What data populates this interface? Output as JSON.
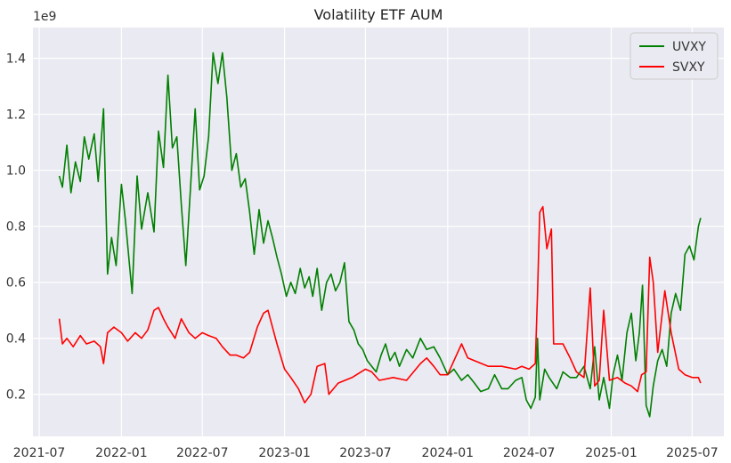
{
  "chart_data": {
    "type": "line",
    "title": "Volatility ETF AUM",
    "offset_label": "1e9",
    "xlabel": "",
    "ylabel": "",
    "xlim": [
      "2021-06-17",
      "2025-09-10"
    ],
    "ylim": [
      0.05,
      1.51
    ],
    "x_ticks": [
      "2021-07",
      "2022-01",
      "2022-07",
      "2023-01",
      "2023-07",
      "2024-01",
      "2024-07",
      "2025-01",
      "2025-07"
    ],
    "y_ticks": [
      0.2,
      0.4,
      0.6,
      0.8,
      1.0,
      1.2,
      1.4
    ],
    "y_tick_labels": [
      "0.2",
      "0.4",
      "0.6",
      "0.8",
      "1.0",
      "1.2",
      "1.4"
    ],
    "grid": true,
    "legend_position": "top-right",
    "series": [
      {
        "name": "UVXY",
        "color": "#008000",
        "points": [
          [
            "2021-08-15",
            0.98
          ],
          [
            "2021-08-22",
            0.94
          ],
          [
            "2021-09-01",
            1.09
          ],
          [
            "2021-09-10",
            0.92
          ],
          [
            "2021-09-20",
            1.03
          ],
          [
            "2021-10-01",
            0.96
          ],
          [
            "2021-10-10",
            1.12
          ],
          [
            "2021-10-20",
            1.04
          ],
          [
            "2021-11-01",
            1.13
          ],
          [
            "2021-11-10",
            0.96
          ],
          [
            "2021-11-22",
            1.22
          ],
          [
            "2021-12-01",
            0.63
          ],
          [
            "2021-12-10",
            0.76
          ],
          [
            "2021-12-20",
            0.66
          ],
          [
            "2022-01-01",
            0.95
          ],
          [
            "2022-01-10",
            0.82
          ],
          [
            "2022-01-25",
            0.56
          ],
          [
            "2022-02-05",
            0.98
          ],
          [
            "2022-02-15",
            0.79
          ],
          [
            "2022-03-01",
            0.92
          ],
          [
            "2022-03-15",
            0.78
          ],
          [
            "2022-03-25",
            1.14
          ],
          [
            "2022-04-05",
            1.01
          ],
          [
            "2022-04-15",
            1.34
          ],
          [
            "2022-04-25",
            1.08
          ],
          [
            "2022-05-05",
            1.12
          ],
          [
            "2022-05-15",
            0.88
          ],
          [
            "2022-05-25",
            0.66
          ],
          [
            "2022-06-05",
            0.95
          ],
          [
            "2022-06-15",
            1.22
          ],
          [
            "2022-06-25",
            0.93
          ],
          [
            "2022-07-05",
            0.98
          ],
          [
            "2022-07-15",
            1.12
          ],
          [
            "2022-07-25",
            1.42
          ],
          [
            "2022-08-05",
            1.31
          ],
          [
            "2022-08-15",
            1.42
          ],
          [
            "2022-08-25",
            1.26
          ],
          [
            "2022-09-05",
            1.0
          ],
          [
            "2022-09-15",
            1.06
          ],
          [
            "2022-09-25",
            0.94
          ],
          [
            "2022-10-05",
            0.97
          ],
          [
            "2022-10-15",
            0.85
          ],
          [
            "2022-10-25",
            0.7
          ],
          [
            "2022-11-05",
            0.86
          ],
          [
            "2022-11-15",
            0.74
          ],
          [
            "2022-11-25",
            0.82
          ],
          [
            "2022-12-05",
            0.76
          ],
          [
            "2022-12-15",
            0.69
          ],
          [
            "2022-12-25",
            0.63
          ],
          [
            "2023-01-05",
            0.55
          ],
          [
            "2023-01-15",
            0.6
          ],
          [
            "2023-01-25",
            0.56
          ],
          [
            "2023-02-05",
            0.65
          ],
          [
            "2023-02-15",
            0.58
          ],
          [
            "2023-02-25",
            0.62
          ],
          [
            "2023-03-05",
            0.55
          ],
          [
            "2023-03-15",
            0.65
          ],
          [
            "2023-03-25",
            0.5
          ],
          [
            "2023-04-05",
            0.6
          ],
          [
            "2023-04-15",
            0.63
          ],
          [
            "2023-04-25",
            0.57
          ],
          [
            "2023-05-05",
            0.6
          ],
          [
            "2023-05-15",
            0.67
          ],
          [
            "2023-05-25",
            0.46
          ],
          [
            "2023-06-05",
            0.43
          ],
          [
            "2023-06-15",
            0.38
          ],
          [
            "2023-06-25",
            0.36
          ],
          [
            "2023-07-05",
            0.32
          ],
          [
            "2023-07-15",
            0.3
          ],
          [
            "2023-07-25",
            0.28
          ],
          [
            "2023-08-05",
            0.34
          ],
          [
            "2023-08-15",
            0.38
          ],
          [
            "2023-08-25",
            0.32
          ],
          [
            "2023-09-05",
            0.35
          ],
          [
            "2023-09-15",
            0.3
          ],
          [
            "2023-10-01",
            0.36
          ],
          [
            "2023-10-15",
            0.33
          ],
          [
            "2023-11-01",
            0.4
          ],
          [
            "2023-11-15",
            0.36
          ],
          [
            "2023-12-01",
            0.37
          ],
          [
            "2023-12-15",
            0.33
          ],
          [
            "2024-01-01",
            0.27
          ],
          [
            "2024-01-15",
            0.29
          ],
          [
            "2024-02-01",
            0.25
          ],
          [
            "2024-02-15",
            0.27
          ],
          [
            "2024-03-01",
            0.24
          ],
          [
            "2024-03-15",
            0.21
          ],
          [
            "2024-04-01",
            0.22
          ],
          [
            "2024-04-15",
            0.27
          ],
          [
            "2024-05-01",
            0.22
          ],
          [
            "2024-05-15",
            0.22
          ],
          [
            "2024-06-01",
            0.25
          ],
          [
            "2024-06-15",
            0.26
          ],
          [
            "2024-06-25",
            0.18
          ],
          [
            "2024-07-05",
            0.15
          ],
          [
            "2024-07-15",
            0.19
          ],
          [
            "2024-07-20",
            0.4
          ],
          [
            "2024-07-25",
            0.18
          ],
          [
            "2024-08-05",
            0.29
          ],
          [
            "2024-08-15",
            0.26
          ],
          [
            "2024-09-01",
            0.22
          ],
          [
            "2024-09-15",
            0.28
          ],
          [
            "2024-10-01",
            0.26
          ],
          [
            "2024-10-15",
            0.26
          ],
          [
            "2024-11-01",
            0.3
          ],
          [
            "2024-11-15",
            0.22
          ],
          [
            "2024-11-25",
            0.37
          ],
          [
            "2024-12-05",
            0.18
          ],
          [
            "2024-12-15",
            0.26
          ],
          [
            "2024-12-28",
            0.15
          ],
          [
            "2025-01-05",
            0.27
          ],
          [
            "2025-01-15",
            0.34
          ],
          [
            "2025-01-25",
            0.25
          ],
          [
            "2025-02-05",
            0.42
          ],
          [
            "2025-02-15",
            0.49
          ],
          [
            "2025-02-25",
            0.32
          ],
          [
            "2025-03-05",
            0.42
          ],
          [
            "2025-03-12",
            0.59
          ],
          [
            "2025-03-20",
            0.16
          ],
          [
            "2025-03-28",
            0.12
          ],
          [
            "2025-04-05",
            0.23
          ],
          [
            "2025-04-15",
            0.32
          ],
          [
            "2025-04-25",
            0.36
          ],
          [
            "2025-05-05",
            0.3
          ],
          [
            "2025-05-15",
            0.49
          ],
          [
            "2025-05-25",
            0.56
          ],
          [
            "2025-06-05",
            0.5
          ],
          [
            "2025-06-15",
            0.7
          ],
          [
            "2025-06-25",
            0.73
          ],
          [
            "2025-07-05",
            0.68
          ],
          [
            "2025-07-15",
            0.8
          ],
          [
            "2025-07-20",
            0.83
          ]
        ]
      },
      {
        "name": "SVXY",
        "color": "#ff0000",
        "points": [
          [
            "2021-08-15",
            0.47
          ],
          [
            "2021-08-22",
            0.38
          ],
          [
            "2021-09-01",
            0.4
          ],
          [
            "2021-09-15",
            0.37
          ],
          [
            "2021-10-01",
            0.41
          ],
          [
            "2021-10-15",
            0.38
          ],
          [
            "2021-11-01",
            0.39
          ],
          [
            "2021-11-15",
            0.37
          ],
          [
            "2021-11-22",
            0.31
          ],
          [
            "2021-12-01",
            0.42
          ],
          [
            "2021-12-15",
            0.44
          ],
          [
            "2022-01-01",
            0.42
          ],
          [
            "2022-01-15",
            0.39
          ],
          [
            "2022-02-01",
            0.42
          ],
          [
            "2022-02-15",
            0.4
          ],
          [
            "2022-03-01",
            0.43
          ],
          [
            "2022-03-15",
            0.5
          ],
          [
            "2022-03-25",
            0.51
          ],
          [
            "2022-04-05",
            0.47
          ],
          [
            "2022-04-15",
            0.44
          ],
          [
            "2022-05-01",
            0.4
          ],
          [
            "2022-05-15",
            0.47
          ],
          [
            "2022-06-01",
            0.42
          ],
          [
            "2022-06-15",
            0.4
          ],
          [
            "2022-07-01",
            0.42
          ],
          [
            "2022-07-15",
            0.41
          ],
          [
            "2022-08-01",
            0.4
          ],
          [
            "2022-08-15",
            0.37
          ],
          [
            "2022-09-01",
            0.34
          ],
          [
            "2022-09-15",
            0.34
          ],
          [
            "2022-10-01",
            0.33
          ],
          [
            "2022-10-15",
            0.35
          ],
          [
            "2022-11-01",
            0.44
          ],
          [
            "2022-11-15",
            0.49
          ],
          [
            "2022-11-25",
            0.5
          ],
          [
            "2022-12-05",
            0.44
          ],
          [
            "2022-12-15",
            0.38
          ],
          [
            "2023-01-01",
            0.29
          ],
          [
            "2023-01-15",
            0.26
          ],
          [
            "2023-02-01",
            0.22
          ],
          [
            "2023-02-15",
            0.17
          ],
          [
            "2023-03-01",
            0.2
          ],
          [
            "2023-03-15",
            0.3
          ],
          [
            "2023-04-01",
            0.31
          ],
          [
            "2023-04-10",
            0.2
          ],
          [
            "2023-05-01",
            0.24
          ],
          [
            "2023-06-01",
            0.26
          ],
          [
            "2023-07-01",
            0.29
          ],
          [
            "2023-07-15",
            0.28
          ],
          [
            "2023-08-01",
            0.25
          ],
          [
            "2023-09-01",
            0.26
          ],
          [
            "2023-10-01",
            0.25
          ],
          [
            "2023-11-01",
            0.31
          ],
          [
            "2023-11-15",
            0.33
          ],
          [
            "2023-12-01",
            0.3
          ],
          [
            "2023-12-15",
            0.27
          ],
          [
            "2024-01-01",
            0.27
          ],
          [
            "2024-01-15",
            0.32
          ],
          [
            "2024-02-01",
            0.38
          ],
          [
            "2024-02-15",
            0.33
          ],
          [
            "2024-03-01",
            0.32
          ],
          [
            "2024-04-01",
            0.3
          ],
          [
            "2024-05-01",
            0.3
          ],
          [
            "2024-06-01",
            0.29
          ],
          [
            "2024-06-15",
            0.3
          ],
          [
            "2024-07-01",
            0.29
          ],
          [
            "2024-07-15",
            0.31
          ],
          [
            "2024-07-20",
            0.56
          ],
          [
            "2024-07-25",
            0.85
          ],
          [
            "2024-08-01",
            0.87
          ],
          [
            "2024-08-10",
            0.72
          ],
          [
            "2024-08-20",
            0.79
          ],
          [
            "2024-08-25",
            0.38
          ],
          [
            "2024-09-15",
            0.38
          ],
          [
            "2024-10-01",
            0.33
          ],
          [
            "2024-10-15",
            0.28
          ],
          [
            "2024-11-01",
            0.26
          ],
          [
            "2024-11-15",
            0.58
          ],
          [
            "2024-11-25",
            0.23
          ],
          [
            "2024-12-05",
            0.25
          ],
          [
            "2024-12-15",
            0.5
          ],
          [
            "2024-12-28",
            0.25
          ],
          [
            "2025-01-15",
            0.26
          ],
          [
            "2025-02-01",
            0.24
          ],
          [
            "2025-02-15",
            0.23
          ],
          [
            "2025-03-01",
            0.21
          ],
          [
            "2025-03-10",
            0.27
          ],
          [
            "2025-03-20",
            0.28
          ],
          [
            "2025-03-28",
            0.69
          ],
          [
            "2025-04-05",
            0.6
          ],
          [
            "2025-04-15",
            0.35
          ],
          [
            "2025-05-01",
            0.57
          ],
          [
            "2025-05-15",
            0.42
          ],
          [
            "2025-06-01",
            0.29
          ],
          [
            "2025-06-15",
            0.27
          ],
          [
            "2025-07-01",
            0.26
          ],
          [
            "2025-07-15",
            0.26
          ],
          [
            "2025-07-20",
            0.24
          ]
        ]
      }
    ]
  }
}
